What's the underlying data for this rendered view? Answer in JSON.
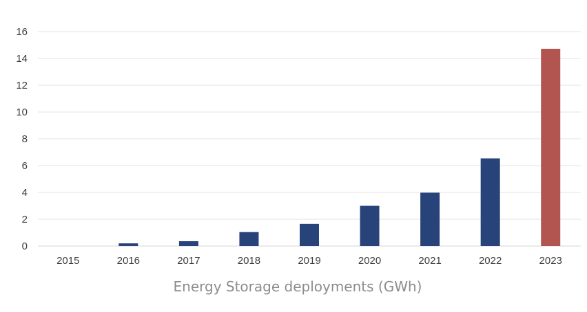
{
  "chart_data": {
    "type": "bar",
    "title": "",
    "xlabel": "Energy Storage deployments (GWh)",
    "ylabel": "",
    "ylim": [
      0,
      16
    ],
    "yticks": [
      0,
      2,
      4,
      6,
      8,
      10,
      12,
      14,
      16
    ],
    "grid": true,
    "categories": [
      "2015",
      "2016",
      "2017",
      "2018",
      "2019",
      "2020",
      "2021",
      "2022",
      "2023"
    ],
    "values": [
      0,
      0.2,
      0.36,
      1.04,
      1.65,
      3.0,
      3.98,
      6.54,
      14.72
    ],
    "bar_colors": [
      "#284379",
      "#284379",
      "#284379",
      "#284379",
      "#284379",
      "#284379",
      "#284379",
      "#284379",
      "#b25450"
    ]
  }
}
